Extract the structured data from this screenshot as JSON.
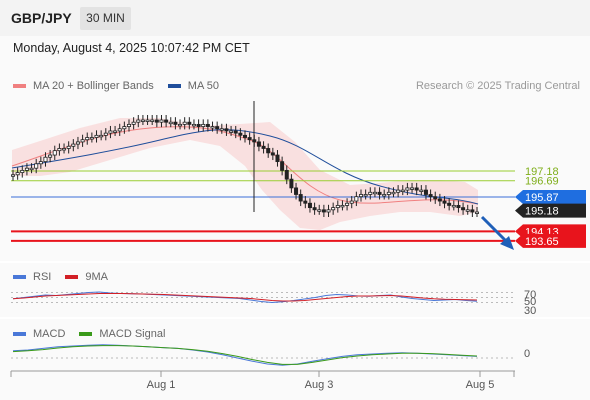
{
  "header": {
    "symbol": "GBP/JPY",
    "timeframe": "30 MIN"
  },
  "datetime": "Monday, August 4, 2025 10:07:42 PM CET",
  "credit": "Research © 2025 Trading Central",
  "colors": {
    "bollinger": "#f08080",
    "ma50": "#1f4e9b",
    "green_level": "#9acd32",
    "blue_level": "#3a6fd8",
    "red_level": "#e8141c",
    "candle": "#222222",
    "rsi": "#4a78d8",
    "rsi_ma": "#d21f26",
    "macd": "#4a78d8",
    "macd_signal": "#3a9a1a"
  },
  "legends": {
    "price": [
      {
        "label": "MA 20 + Bollinger Bands",
        "color": "#f08080"
      },
      {
        "label": "MA 50",
        "color": "#1f4e9b"
      }
    ],
    "rsi": [
      {
        "label": "RSI",
        "color": "#4a78d8"
      },
      {
        "label": "9MA",
        "color": "#d21f26"
      }
    ],
    "macd": [
      {
        "label": "MACD",
        "color": "#4a78d8"
      },
      {
        "label": "MACD Signal",
        "color": "#3a9a1a"
      }
    ]
  },
  "chart_data": [
    {
      "type": "candlestick",
      "title": "GBP/JPY 30 MIN",
      "x_ticks": [
        "Aug 1",
        "Aug 3",
        "Aug 5"
      ],
      "ylim": [
        193.2,
        198.4
      ],
      "levels": [
        {
          "value": 197.18,
          "label": "197.18",
          "kind": "resistance",
          "color": "#9acd32"
        },
        {
          "value": 196.69,
          "label": "196.69",
          "kind": "resistance",
          "color": "#9acd32"
        },
        {
          "value": 195.87,
          "label": "195.87",
          "kind": "pivot",
          "color": "#3a6fd8"
        },
        {
          "value": 194.13,
          "label": "194.13",
          "kind": "support",
          "color": "#e8141c"
        },
        {
          "value": 193.65,
          "label": "193.65",
          "kind": "support",
          "color": "#e8141c"
        }
      ],
      "last_price": {
        "value": 195.18,
        "label": "195.18"
      },
      "close_series": [
        196.9,
        197.0,
        197.1,
        197.2,
        197.2,
        197.4,
        197.5,
        197.7,
        197.8,
        198.0,
        198.1,
        198.1,
        198.2,
        198.3,
        198.4,
        198.5,
        198.6,
        198.6,
        198.7,
        198.7,
        198.8,
        198.9,
        198.9,
        199.0,
        199.1,
        199.2,
        199.3,
        199.4,
        199.4,
        199.4,
        199.4,
        199.3,
        199.4,
        199.3,
        199.3,
        199.2,
        199.2,
        199.3,
        199.2,
        199.2,
        199.1,
        199.2,
        199.1,
        199.1,
        199.0,
        199.0,
        198.9,
        198.9,
        198.8,
        198.7,
        198.6,
        198.5,
        198.4,
        198.2,
        198.1,
        197.9,
        197.8,
        197.5,
        197.1,
        196.7,
        196.3,
        196.0,
        195.7,
        195.6,
        195.4,
        195.3,
        195.3,
        195.2,
        195.3,
        195.4,
        195.5,
        195.5,
        195.6,
        195.7,
        195.9,
        196.0,
        196.0,
        196.1,
        196.1,
        196.0,
        196.0,
        196.1,
        196.1,
        196.2,
        196.2,
        196.3,
        196.3,
        196.2,
        196.2,
        196.0,
        195.9,
        195.8,
        195.7,
        195.6,
        195.5,
        195.5,
        195.4,
        195.3,
        195.3,
        195.2,
        195.2
      ]
    },
    {
      "type": "line",
      "title": "RSI",
      "ylim": [
        0,
        100
      ],
      "y_ticks": [
        "70",
        "50",
        "30"
      ],
      "series": [
        {
          "name": "RSI",
          "values": [
            45,
            50,
            55,
            60,
            58,
            62,
            66,
            70,
            72,
            68,
            66,
            65,
            64,
            62,
            60,
            58,
            56,
            54,
            52,
            50,
            48,
            46,
            40,
            34,
            30,
            33,
            38,
            44,
            50,
            58,
            62,
            60,
            56,
            55,
            58,
            60,
            52,
            46,
            42,
            38,
            40,
            42,
            38,
            35
          ]
        },
        {
          "name": "9MA",
          "values": [
            45,
            48,
            52,
            56,
            58,
            60,
            62,
            64,
            66,
            66,
            66,
            65,
            64,
            63,
            62,
            60,
            58,
            56,
            54,
            52,
            50,
            48,
            46,
            42,
            38,
            36,
            36,
            38,
            42,
            46,
            50,
            54,
            56,
            56,
            57,
            58,
            56,
            52,
            48,
            45,
            43,
            42,
            41,
            40
          ]
        }
      ]
    },
    {
      "type": "line",
      "title": "MACD",
      "y_ticks": [
        "0"
      ],
      "series": [
        {
          "name": "MACD",
          "values": [
            0.18,
            0.2,
            0.24,
            0.28,
            0.3,
            0.32,
            0.33,
            0.32,
            0.3,
            0.28,
            0.26,
            0.24,
            0.2,
            0.15,
            0.08,
            0.0,
            -0.08,
            -0.15,
            -0.18,
            -0.15,
            -0.08,
            -0.02,
            0.04,
            0.08,
            0.1,
            0.12,
            0.13,
            0.12,
            0.1,
            0.08,
            0.06,
            0.04
          ]
        },
        {
          "name": "MACD Signal",
          "values": [
            0.16,
            0.18,
            0.21,
            0.25,
            0.28,
            0.3,
            0.31,
            0.31,
            0.3,
            0.28,
            0.26,
            0.24,
            0.21,
            0.17,
            0.11,
            0.04,
            -0.04,
            -0.11,
            -0.16,
            -0.16,
            -0.11,
            -0.05,
            0.01,
            0.05,
            0.08,
            0.1,
            0.12,
            0.12,
            0.11,
            0.09,
            0.07,
            0.05
          ]
        }
      ]
    }
  ]
}
